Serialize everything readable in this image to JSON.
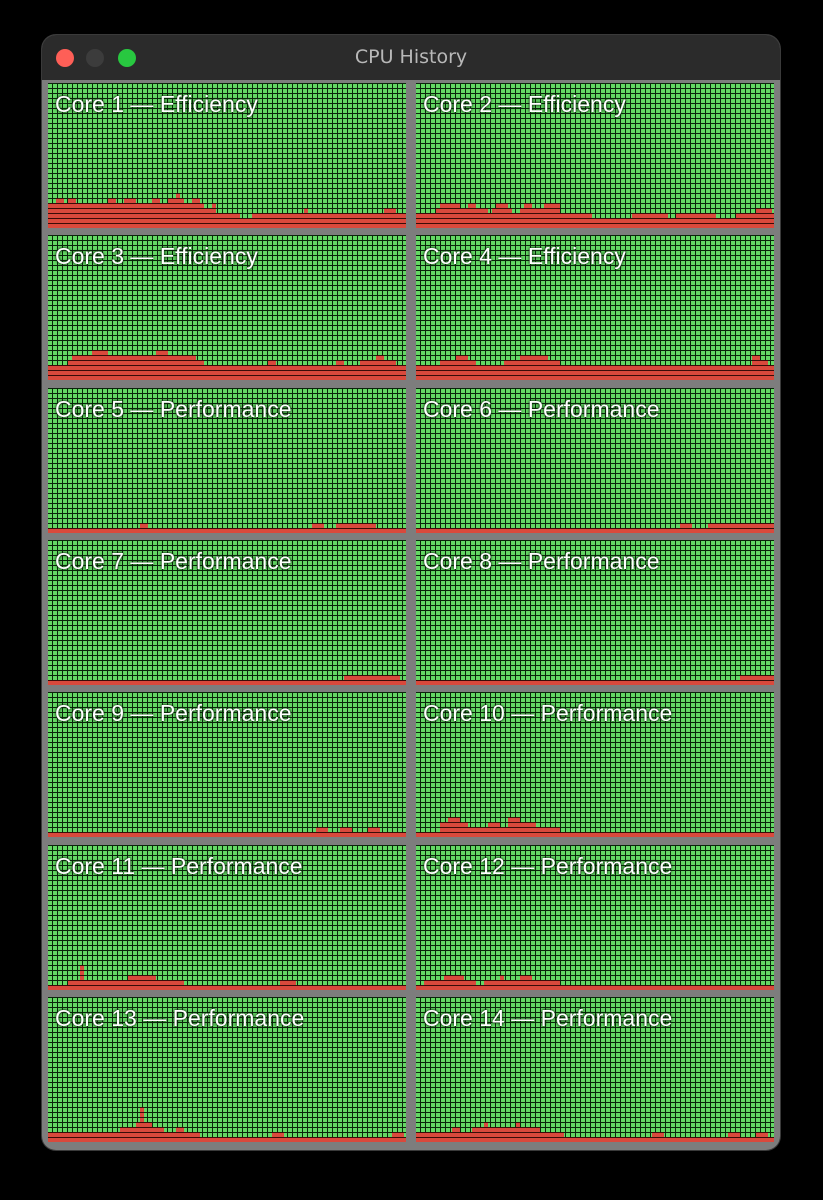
{
  "window": {
    "title": "CPU History"
  },
  "colors": {
    "idle": "#64d864",
    "busy": "#d9493c",
    "grid": "#0b250b",
    "frame": "#7d7d7d"
  },
  "cores": [
    {
      "label": "Core 1 — Efficiency",
      "history": [
        0.18,
        0.18,
        0.2,
        0.2,
        0.18,
        0.2,
        0.22,
        0.18,
        0.16,
        0.16,
        0.18,
        0.16,
        0.16,
        0.18,
        0.16,
        0.2,
        0.2,
        0.18,
        0.18,
        0.2,
        0.2,
        0.22,
        0.18,
        0.18,
        0.16,
        0.16,
        0.2,
        0.2,
        0.18,
        0.18,
        0.2,
        0.22,
        0.24,
        0.2,
        0.18,
        0.18,
        0.2,
        0.2,
        0.18,
        0.14,
        0.14,
        0.16,
        0.12,
        0.1,
        0.1,
        0.1,
        0.1,
        0.1,
        0.08,
        0.08,
        0.08,
        0.1,
        0.12,
        0.1,
        0.1,
        0.1,
        0.12,
        0.1,
        0.1,
        0.12,
        0.1,
        0.1,
        0.1,
        0.12,
        0.14,
        0.12,
        0.1,
        0.1,
        0.12,
        0.12,
        0.12,
        0.12,
        0.12,
        0.1,
        0.1,
        0.12,
        0.12,
        0.1,
        0.1,
        0.1,
        0.12,
        0.12,
        0.12,
        0.12,
        0.14,
        0.14,
        0.14,
        0.12,
        0.12,
        0.12
      ]
    },
    {
      "label": "Core 2 — Efficiency",
      "history": [
        0.12,
        0.12,
        0.12,
        0.12,
        0.12,
        0.14,
        0.16,
        0.18,
        0.18,
        0.18,
        0.16,
        0.14,
        0.14,
        0.16,
        0.16,
        0.14,
        0.14,
        0.14,
        0.12,
        0.14,
        0.16,
        0.16,
        0.16,
        0.14,
        0.12,
        0.12,
        0.14,
        0.16,
        0.16,
        0.14,
        0.14,
        0.14,
        0.16,
        0.16,
        0.16,
        0.16,
        0.12,
        0.12,
        0.12,
        0.12,
        0.1,
        0.1,
        0.1,
        0.1,
        0.08,
        0.08,
        0.08,
        0.08,
        0.08,
        0.08,
        0.08,
        0.08,
        0.08,
        0.08,
        0.1,
        0.1,
        0.1,
        0.12,
        0.12,
        0.1,
        0.1,
        0.1,
        0.1,
        0.08,
        0.08,
        0.1,
        0.1,
        0.12,
        0.1,
        0.1,
        0.1,
        0.1,
        0.1,
        0.1,
        0.1,
        0.08,
        0.08,
        0.08,
        0.08,
        0.08,
        0.1,
        0.1,
        0.1,
        0.1,
        0.12,
        0.14,
        0.14,
        0.14,
        0.14,
        0.12
      ]
    },
    {
      "label": "Core 3 — Efficiency",
      "history": [
        0.12,
        0.12,
        0.12,
        0.12,
        0.12,
        0.14,
        0.16,
        0.16,
        0.16,
        0.18,
        0.18,
        0.2,
        0.22,
        0.22,
        0.2,
        0.18,
        0.18,
        0.16,
        0.16,
        0.16,
        0.16,
        0.18,
        0.18,
        0.16,
        0.16,
        0.18,
        0.18,
        0.2,
        0.2,
        0.2,
        0.18,
        0.18,
        0.18,
        0.16,
        0.16,
        0.16,
        0.16,
        0.14,
        0.14,
        0.12,
        0.12,
        0.1,
        0.1,
        0.1,
        0.1,
        0.1,
        0.1,
        0.1,
        0.1,
        0.1,
        0.1,
        0.1,
        0.12,
        0.12,
        0.12,
        0.14,
        0.14,
        0.12,
        0.12,
        0.12,
        0.1,
        0.1,
        0.12,
        0.12,
        0.12,
        0.1,
        0.1,
        0.1,
        0.1,
        0.1,
        0.12,
        0.12,
        0.14,
        0.14,
        0.12,
        0.12,
        0.12,
        0.12,
        0.14,
        0.14,
        0.14,
        0.14,
        0.16,
        0.16,
        0.14,
        0.14,
        0.14,
        0.12,
        0.12,
        0.12
      ]
    },
    {
      "label": "Core 4 — Efficiency",
      "history": [
        0.12,
        0.12,
        0.12,
        0.12,
        0.12,
        0.12,
        0.14,
        0.14,
        0.14,
        0.14,
        0.16,
        0.16,
        0.16,
        0.14,
        0.14,
        0.12,
        0.12,
        0.12,
        0.12,
        0.12,
        0.12,
        0.12,
        0.14,
        0.14,
        0.14,
        0.14,
        0.16,
        0.16,
        0.18,
        0.18,
        0.18,
        0.16,
        0.16,
        0.14,
        0.14,
        0.14,
        0.12,
        0.12,
        0.12,
        0.1,
        0.1,
        0.1,
        0.1,
        0.1,
        0.1,
        0.1,
        0.1,
        0.1,
        0.1,
        0.1,
        0.1,
        0.1,
        0.1,
        0.12,
        0.12,
        0.12,
        0.12,
        0.1,
        0.1,
        0.1,
        0.1,
        0.1,
        0.1,
        0.1,
        0.1,
        0.1,
        0.1,
        0.1,
        0.1,
        0.1,
        0.1,
        0.1,
        0.12,
        0.12,
        0.12,
        0.12,
        0.12,
        0.12,
        0.12,
        0.12,
        0.1,
        0.12,
        0.12,
        0.12,
        0.16,
        0.16,
        0.14,
        0.14,
        0.12,
        0.12
      ]
    },
    {
      "label": "Core 5 — Performance",
      "history": [
        0.04,
        0.04,
        0.02,
        0.02,
        0.02,
        0.02,
        0.02,
        0.02,
        0.04,
        0.04,
        0.02,
        0.02,
        0.02,
        0.02,
        0.02,
        0.04,
        0.04,
        0.02,
        0.02,
        0.02,
        0.02,
        0.04,
        0.04,
        0.06,
        0.06,
        0.04,
        0.04,
        0.04,
        0.02,
        0.02,
        0.02,
        0.02,
        0.02,
        0.02,
        0.02,
        0.02,
        0.02,
        0.02,
        0.02,
        0.02,
        0.02,
        0.02,
        0.02,
        0.02,
        0.02,
        0.02,
        0.02,
        0.02,
        0.02,
        0.02,
        0.02,
        0.02,
        0.02,
        0.02,
        0.02,
        0.02,
        0.04,
        0.04,
        0.04,
        0.04,
        0.04,
        0.04,
        0.04,
        0.04,
        0.04,
        0.04,
        0.06,
        0.06,
        0.06,
        0.04,
        0.04,
        0.04,
        0.06,
        0.06,
        0.06,
        0.06,
        0.06,
        0.06,
        0.06,
        0.06,
        0.06,
        0.06,
        0.04,
        0.04,
        0.04,
        0.04,
        0.04,
        0.04,
        0.04,
        0.04
      ]
    },
    {
      "label": "Core 6 — Performance",
      "history": [
        0.04,
        0.04,
        0.02,
        0.02,
        0.02,
        0.02,
        0.02,
        0.02,
        0.04,
        0.04,
        0.02,
        0.02,
        0.02,
        0.02,
        0.02,
        0.02,
        0.02,
        0.04,
        0.04,
        0.02,
        0.02,
        0.02,
        0.02,
        0.04,
        0.04,
        0.02,
        0.02,
        0.02,
        0.02,
        0.02,
        0.02,
        0.02,
        0.02,
        0.02,
        0.02,
        0.02,
        0.02,
        0.02,
        0.02,
        0.02,
        0.02,
        0.02,
        0.02,
        0.02,
        0.02,
        0.02,
        0.02,
        0.02,
        0.02,
        0.02,
        0.02,
        0.02,
        0.02,
        0.02,
        0.02,
        0.02,
        0.02,
        0.02,
        0.04,
        0.04,
        0.04,
        0.04,
        0.04,
        0.04,
        0.04,
        0.04,
        0.06,
        0.06,
        0.06,
        0.04,
        0.04,
        0.04,
        0.04,
        0.06,
        0.06,
        0.06,
        0.06,
        0.06,
        0.06,
        0.06,
        0.06,
        0.06,
        0.08,
        0.08,
        0.08,
        0.06,
        0.06,
        0.06,
        0.06,
        0.06
      ]
    },
    {
      "label": "Core 7 — Performance",
      "history": [
        0.02,
        0.02,
        0.02,
        0.02,
        0.02,
        0.02,
        0.02,
        0.02,
        0.02,
        0.02,
        0.02,
        0.02,
        0.02,
        0.02,
        0.02,
        0.02,
        0.02,
        0.02,
        0.02,
        0.02,
        0.02,
        0.02,
        0.02,
        0.02,
        0.02,
        0.02,
        0.02,
        0.02,
        0.02,
        0.02,
        0.02,
        0.02,
        0.02,
        0.02,
        0.02,
        0.02,
        0.02,
        0.02,
        0.02,
        0.02,
        0.02,
        0.02,
        0.02,
        0.02,
        0.02,
        0.02,
        0.02,
        0.02,
        0.02,
        0.02,
        0.02,
        0.02,
        0.02,
        0.02,
        0.02,
        0.02,
        0.02,
        0.02,
        0.02,
        0.04,
        0.04,
        0.04,
        0.04,
        0.04,
        0.04,
        0.04,
        0.04,
        0.04,
        0.04,
        0.04,
        0.04,
        0.04,
        0.04,
        0.04,
        0.06,
        0.06,
        0.06,
        0.06,
        0.06,
        0.06,
        0.06,
        0.06,
        0.08,
        0.08,
        0.08,
        0.06,
        0.06,
        0.06,
        0.04,
        0.04
      ]
    },
    {
      "label": "Core 8 — Performance",
      "history": [
        0.02,
        0.02,
        0.02,
        0.02,
        0.02,
        0.02,
        0.02,
        0.02,
        0.02,
        0.02,
        0.02,
        0.02,
        0.02,
        0.02,
        0.02,
        0.02,
        0.02,
        0.02,
        0.02,
        0.02,
        0.02,
        0.02,
        0.02,
        0.02,
        0.02,
        0.02,
        0.02,
        0.02,
        0.02,
        0.02,
        0.02,
        0.02,
        0.02,
        0.02,
        0.02,
        0.02,
        0.02,
        0.02,
        0.02,
        0.02,
        0.02,
        0.02,
        0.02,
        0.02,
        0.02,
        0.02,
        0.02,
        0.02,
        0.02,
        0.02,
        0.02,
        0.02,
        0.02,
        0.02,
        0.02,
        0.02,
        0.02,
        0.02,
        0.02,
        0.02,
        0.02,
        0.02,
        0.02,
        0.02,
        0.02,
        0.02,
        0.02,
        0.04,
        0.04,
        0.04,
        0.04,
        0.04,
        0.04,
        0.04,
        0.04,
        0.04,
        0.04,
        0.04,
        0.04,
        0.04,
        0.04,
        0.06,
        0.06,
        0.06,
        0.06,
        0.06,
        0.06,
        0.06,
        0.06,
        0.06
      ]
    },
    {
      "label": "Core 9 — Performance",
      "history": [
        0.02,
        0.02,
        0.02,
        0.02,
        0.02,
        0.02,
        0.02,
        0.02,
        0.02,
        0.02,
        0.02,
        0.02,
        0.02,
        0.02,
        0.02,
        0.02,
        0.02,
        0.02,
        0.02,
        0.02,
        0.02,
        0.02,
        0.02,
        0.02,
        0.02,
        0.02,
        0.02,
        0.02,
        0.02,
        0.02,
        0.02,
        0.02,
        0.02,
        0.02,
        0.02,
        0.02,
        0.02,
        0.02,
        0.02,
        0.02,
        0.02,
        0.02,
        0.02,
        0.02,
        0.02,
        0.02,
        0.02,
        0.02,
        0.02,
        0.02,
        0.02,
        0.02,
        0.02,
        0.02,
        0.02,
        0.04,
        0.04,
        0.04,
        0.04,
        0.04,
        0.04,
        0.04,
        0.04,
        0.04,
        0.04,
        0.04,
        0.04,
        0.06,
        0.06,
        0.06,
        0.04,
        0.04,
        0.04,
        0.06,
        0.06,
        0.06,
        0.04,
        0.04,
        0.04,
        0.04,
        0.06,
        0.06,
        0.06,
        0.04,
        0.04,
        0.04,
        0.04,
        0.04,
        0.04,
        0.04
      ]
    },
    {
      "label": "Core 10 — Performance",
      "history": [
        0.04,
        0.04,
        0.04,
        0.04,
        0.04,
        0.04,
        0.1,
        0.1,
        0.14,
        0.14,
        0.14,
        0.1,
        0.1,
        0.06,
        0.06,
        0.06,
        0.08,
        0.08,
        0.12,
        0.12,
        0.12,
        0.08,
        0.08,
        0.14,
        0.14,
        0.14,
        0.12,
        0.12,
        0.1,
        0.1,
        0.08,
        0.08,
        0.08,
        0.06,
        0.06,
        0.06,
        0.04,
        0.04,
        0.04,
        0.04,
        0.04,
        0.02,
        0.02,
        0.02,
        0.02,
        0.02,
        0.02,
        0.02,
        0.02,
        0.02,
        0.02,
        0.02,
        0.02,
        0.02,
        0.02,
        0.02,
        0.02,
        0.02,
        0.02,
        0.02,
        0.04,
        0.04,
        0.04,
        0.04,
        0.04,
        0.04,
        0.04,
        0.04,
        0.04,
        0.04,
        0.04,
        0.04,
        0.04,
        0.04,
        0.04,
        0.04,
        0.04,
        0.04,
        0.04,
        0.04,
        0.04,
        0.04,
        0.04,
        0.04,
        0.04,
        0.04,
        0.04,
        0.04,
        0.04,
        0.04
      ]
    },
    {
      "label": "Core 11 — Performance",
      "history": [
        0.04,
        0.04,
        0.04,
        0.04,
        0.04,
        0.06,
        0.06,
        0.08,
        0.18,
        0.08,
        0.06,
        0.06,
        0.06,
        0.06,
        0.06,
        0.06,
        0.08,
        0.08,
        0.08,
        0.08,
        0.1,
        0.1,
        0.12,
        0.12,
        0.12,
        0.1,
        0.1,
        0.08,
        0.08,
        0.06,
        0.06,
        0.06,
        0.06,
        0.06,
        0.04,
        0.04,
        0.04,
        0.04,
        0.04,
        0.04,
        0.04,
        0.02,
        0.02,
        0.02,
        0.02,
        0.02,
        0.02,
        0.02,
        0.02,
        0.02,
        0.02,
        0.02,
        0.02,
        0.02,
        0.02,
        0.02,
        0.02,
        0.02,
        0.06,
        0.06,
        0.06,
        0.06,
        0.04,
        0.04,
        0.04,
        0.04,
        0.02,
        0.02,
        0.02,
        0.02,
        0.02,
        0.02,
        0.02,
        0.02,
        0.04,
        0.04,
        0.04,
        0.04,
        0.04,
        0.04,
        0.04,
        0.04,
        0.02,
        0.02,
        0.02,
        0.02,
        0.02,
        0.02,
        0.02,
        0.02
      ]
    },
    {
      "label": "Core 12 — Performance",
      "history": [
        0.04,
        0.04,
        0.06,
        0.06,
        0.06,
        0.06,
        0.06,
        0.1,
        0.1,
        0.12,
        0.12,
        0.1,
        0.06,
        0.06,
        0.06,
        0.04,
        0.04,
        0.06,
        0.06,
        0.08,
        0.08,
        0.1,
        0.08,
        0.08,
        0.08,
        0.08,
        0.1,
        0.1,
        0.1,
        0.08,
        0.08,
        0.06,
        0.06,
        0.06,
        0.06,
        0.06,
        0.04,
        0.04,
        0.04,
        0.04,
        0.04,
        0.04,
        0.02,
        0.02,
        0.02,
        0.02,
        0.02,
        0.02,
        0.02,
        0.02,
        0.02,
        0.02,
        0.02,
        0.02,
        0.02,
        0.02,
        0.02,
        0.02,
        0.02,
        0.02,
        0.04,
        0.04,
        0.04,
        0.04,
        0.04,
        0.04,
        0.04,
        0.04,
        0.04,
        0.04,
        0.02,
        0.02,
        0.02,
        0.02,
        0.02,
        0.02,
        0.02,
        0.02,
        0.02,
        0.02,
        0.02,
        0.02,
        0.02,
        0.02,
        0.02,
        0.02,
        0.02,
        0.02,
        0.02,
        0.02
      ]
    },
    {
      "label": "Core 13 — Performance",
      "history": [
        0.06,
        0.06,
        0.06,
        0.06,
        0.06,
        0.06,
        0.06,
        0.08,
        0.08,
        0.08,
        0.06,
        0.06,
        0.06,
        0.06,
        0.06,
        0.08,
        0.08,
        0.08,
        0.1,
        0.1,
        0.1,
        0.1,
        0.14,
        0.24,
        0.14,
        0.14,
        0.12,
        0.1,
        0.1,
        0.08,
        0.08,
        0.08,
        0.1,
        0.1,
        0.08,
        0.08,
        0.06,
        0.06,
        0.04,
        0.04,
        0.04,
        0.04,
        0.04,
        0.04,
        0.04,
        0.04,
        0.04,
        0.04,
        0.04,
        0.04,
        0.04,
        0.04,
        0.04,
        0.04,
        0.04,
        0.04,
        0.06,
        0.06,
        0.06,
        0.04,
        0.04,
        0.04,
        0.04,
        0.04,
        0.04,
        0.04,
        0.04,
        0.04,
        0.04,
        0.04,
        0.04,
        0.04,
        0.04,
        0.04,
        0.04,
        0.04,
        0.04,
        0.04,
        0.04,
        0.04,
        0.04,
        0.04,
        0.04,
        0.04,
        0.04,
        0.04,
        0.06,
        0.06,
        0.06,
        0.04
      ]
    },
    {
      "label": "Core 14 — Performance",
      "history": [
        0.06,
        0.06,
        0.06,
        0.06,
        0.06,
        0.06,
        0.06,
        0.08,
        0.08,
        0.1,
        0.1,
        0.08,
        0.08,
        0.08,
        0.1,
        0.1,
        0.12,
        0.14,
        0.12,
        0.12,
        0.1,
        0.1,
        0.1,
        0.12,
        0.12,
        0.14,
        0.12,
        0.12,
        0.1,
        0.1,
        0.1,
        0.08,
        0.08,
        0.08,
        0.06,
        0.06,
        0.06,
        0.04,
        0.04,
        0.04,
        0.04,
        0.04,
        0.04,
        0.04,
        0.04,
        0.04,
        0.04,
        0.04,
        0.04,
        0.04,
        0.04,
        0.04,
        0.04,
        0.04,
        0.04,
        0.04,
        0.04,
        0.04,
        0.04,
        0.06,
        0.06,
        0.06,
        0.04,
        0.04,
        0.04,
        0.04,
        0.04,
        0.04,
        0.04,
        0.04,
        0.04,
        0.04,
        0.04,
        0.04,
        0.04,
        0.04,
        0.04,
        0.04,
        0.06,
        0.06,
        0.06,
        0.04,
        0.04,
        0.04,
        0.04,
        0.06,
        0.06,
        0.06,
        0.04,
        0.04
      ]
    }
  ]
}
